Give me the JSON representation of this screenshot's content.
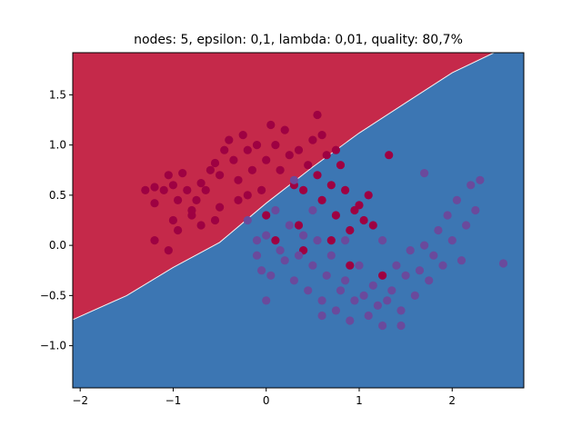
{
  "chart_data": {
    "type": "scatter",
    "title": "nodes: 5, epsilon: 0,1, lambda: 0,01, quality: 80,7%",
    "xlabel": "",
    "ylabel": "",
    "xlim": [
      -2.08,
      2.77
    ],
    "ylim": [
      -1.42,
      1.92
    ],
    "x_ticks": [
      {
        "value": -2,
        "label": "−2"
      },
      {
        "value": -1,
        "label": "−1"
      },
      {
        "value": 0,
        "label": "0"
      },
      {
        "value": 1,
        "label": "1"
      },
      {
        "value": 2,
        "label": "2"
      }
    ],
    "y_ticks": [
      {
        "value": -1.0,
        "label": "−1.0"
      },
      {
        "value": -0.5,
        "label": "−0.5"
      },
      {
        "value": 0.0,
        "label": "0.0"
      },
      {
        "value": 0.5,
        "label": "0.5"
      },
      {
        "value": 1.0,
        "label": "1.0"
      },
      {
        "value": 1.5,
        "label": "1.5"
      }
    ],
    "grid": false,
    "legend": "none",
    "decision_regions": {
      "boundary": [
        [
          -2.08,
          -0.74
        ],
        [
          -1.5,
          -0.5
        ],
        [
          -1.0,
          -0.22
        ],
        [
          -0.5,
          0.03
        ],
        [
          0.0,
          0.42
        ],
        [
          0.5,
          0.78
        ],
        [
          1.0,
          1.12
        ],
        [
          1.5,
          1.42
        ],
        [
          2.0,
          1.72
        ],
        [
          2.45,
          1.92
        ]
      ],
      "upper_color": "#c5294a",
      "lower_color": "#3c76b3"
    },
    "series": [
      {
        "color": "#9e0142",
        "points": [
          [
            -1.3,
            0.55
          ],
          [
            -1.2,
            0.58
          ],
          [
            -1.2,
            0.42
          ],
          [
            -1.1,
            0.55
          ],
          [
            -1.05,
            0.7
          ],
          [
            -1.0,
            0.6
          ],
          [
            -1.0,
            0.25
          ],
          [
            -0.95,
            0.45
          ],
          [
            -0.9,
            0.72
          ],
          [
            -0.85,
            0.55
          ],
          [
            -0.8,
            0.3
          ],
          [
            -0.75,
            0.45
          ],
          [
            -0.7,
            0.62
          ],
          [
            -0.65,
            0.55
          ],
          [
            -0.6,
            0.75
          ],
          [
            -0.55,
            0.82
          ],
          [
            -0.5,
            0.7
          ],
          [
            -0.45,
            0.95
          ],
          [
            -0.4,
            1.05
          ],
          [
            -0.35,
            0.85
          ],
          [
            -0.3,
            0.65
          ],
          [
            -0.25,
            1.1
          ],
          [
            -0.2,
            0.95
          ],
          [
            -0.15,
            0.75
          ],
          [
            -0.1,
            1.0
          ],
          [
            -0.05,
            0.55
          ],
          [
            0.0,
            0.85
          ],
          [
            0.05,
            1.2
          ],
          [
            0.1,
            1.0
          ],
          [
            0.15,
            0.75
          ],
          [
            0.2,
            1.15
          ],
          [
            0.25,
            0.9
          ],
          [
            0.3,
            0.6
          ],
          [
            0.35,
            0.95
          ],
          [
            0.4,
            0.55
          ],
          [
            0.45,
            0.8
          ],
          [
            0.5,
            1.05
          ],
          [
            0.55,
            0.7
          ],
          [
            0.6,
            0.45
          ],
          [
            0.65,
            0.9
          ],
          [
            0.7,
            0.6
          ],
          [
            0.75,
            0.3
          ],
          [
            0.8,
            0.8
          ],
          [
            0.85,
            0.55
          ],
          [
            0.9,
            0.15
          ],
          [
            0.95,
            0.35
          ],
          [
            1.0,
            0.4
          ],
          [
            1.05,
            0.25
          ],
          [
            1.1,
            0.5
          ],
          [
            1.15,
            0.2
          ],
          [
            -1.2,
            0.05
          ],
          [
            -1.05,
            -0.05
          ],
          [
            -0.95,
            0.15
          ],
          [
            -0.8,
            0.35
          ],
          [
            -0.7,
            0.2
          ],
          [
            -0.55,
            0.25
          ],
          [
            -0.5,
            0.38
          ],
          [
            -0.3,
            0.45
          ],
          [
            -0.2,
            0.5
          ],
          [
            0.0,
            0.3
          ],
          [
            0.1,
            0.05
          ],
          [
            0.4,
            -0.05
          ],
          [
            0.7,
            0.05
          ],
          [
            0.9,
            -0.2
          ],
          [
            1.25,
            -0.3
          ],
          [
            1.32,
            0.9
          ],
          [
            0.35,
            0.2
          ],
          [
            0.55,
            1.3
          ],
          [
            0.75,
            0.95
          ],
          [
            0.6,
            1.1
          ]
        ]
      },
      {
        "color": "#6a4a9c",
        "points": [
          [
            -0.2,
            0.25
          ],
          [
            -0.1,
            0.05
          ],
          [
            -0.05,
            -0.25
          ],
          [
            0.0,
            0.1
          ],
          [
            0.05,
            -0.3
          ],
          [
            0.1,
            0.35
          ],
          [
            0.15,
            -0.05
          ],
          [
            0.2,
            -0.15
          ],
          [
            0.25,
            0.2
          ],
          [
            0.3,
            -0.35
          ],
          [
            0.35,
            -0.1
          ],
          [
            0.4,
            0.1
          ],
          [
            0.45,
            -0.45
          ],
          [
            0.5,
            -0.2
          ],
          [
            0.55,
            0.05
          ],
          [
            0.6,
            -0.55
          ],
          [
            0.65,
            -0.3
          ],
          [
            0.7,
            -0.1
          ],
          [
            0.75,
            -0.65
          ],
          [
            0.8,
            -0.45
          ],
          [
            0.85,
            -0.35
          ],
          [
            0.9,
            -0.75
          ],
          [
            0.95,
            -0.55
          ],
          [
            1.0,
            -0.2
          ],
          [
            1.05,
            -0.5
          ],
          [
            1.1,
            -0.7
          ],
          [
            1.15,
            -0.4
          ],
          [
            1.2,
            -0.6
          ],
          [
            1.25,
            -0.8
          ],
          [
            1.3,
            -0.55
          ],
          [
            1.35,
            -0.45
          ],
          [
            1.4,
            -0.2
          ],
          [
            1.45,
            -0.65
          ],
          [
            1.5,
            -0.3
          ],
          [
            1.55,
            -0.05
          ],
          [
            1.6,
            -0.5
          ],
          [
            1.65,
            -0.25
          ],
          [
            1.7,
            0.0
          ],
          [
            1.75,
            -0.35
          ],
          [
            1.8,
            -0.1
          ],
          [
            1.85,
            0.15
          ],
          [
            1.9,
            -0.2
          ],
          [
            1.95,
            0.3
          ],
          [
            2.0,
            0.05
          ],
          [
            2.05,
            0.45
          ],
          [
            2.1,
            -0.15
          ],
          [
            2.15,
            0.2
          ],
          [
            2.2,
            0.6
          ],
          [
            2.25,
            0.35
          ],
          [
            2.3,
            0.65
          ],
          [
            1.7,
            0.72
          ],
          [
            2.55,
            -0.18
          ],
          [
            0.3,
            0.65
          ],
          [
            0.85,
            0.05
          ],
          [
            1.25,
            0.05
          ],
          [
            0.5,
            0.35
          ],
          [
            -0.1,
            -0.1
          ],
          [
            0.0,
            -0.55
          ],
          [
            0.6,
            -0.7
          ],
          [
            1.45,
            -0.8
          ]
        ]
      }
    ]
  }
}
